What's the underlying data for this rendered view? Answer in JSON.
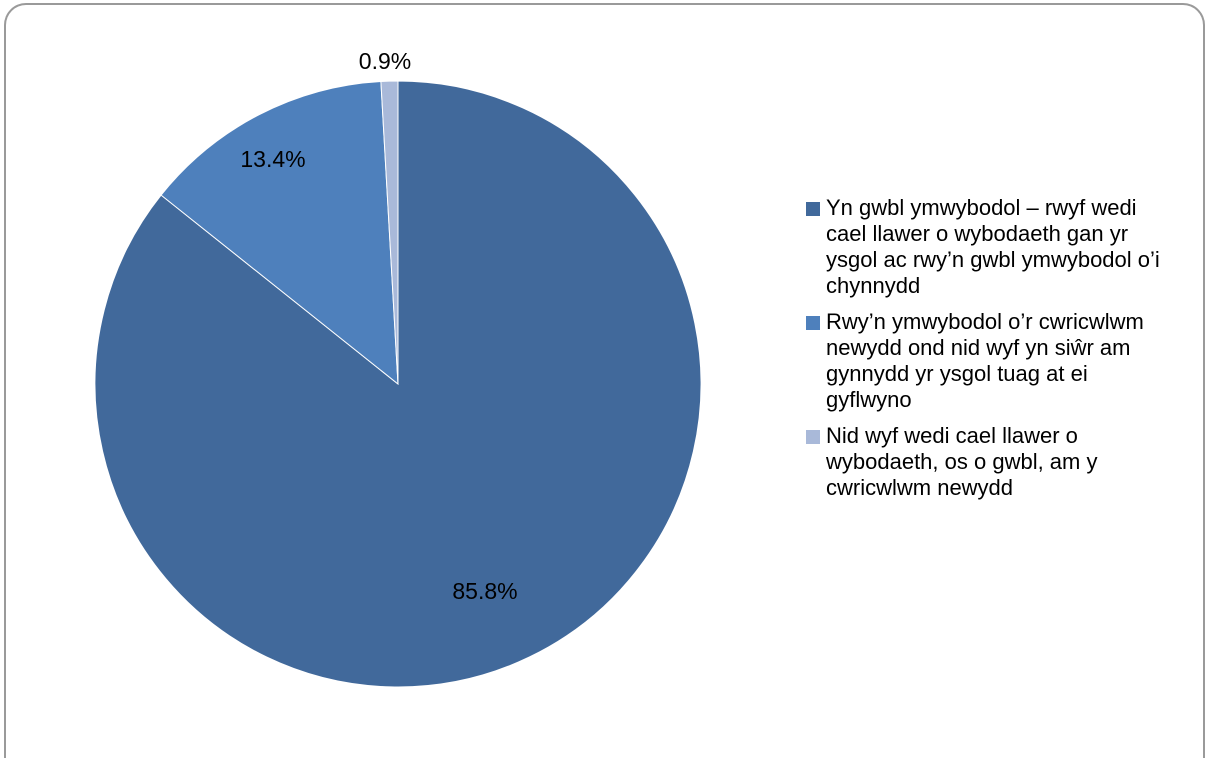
{
  "chart_data": {
    "type": "pie",
    "title": "",
    "slices": [
      {
        "label": "Yn gwbl ymwybodol – rwyf wedi cael llawer o wybodaeth gan yr ysgol ac rwy’n gwbl ymwybodol o’i chynnydd",
        "value": 85.8,
        "display": "85.8%",
        "color": "#41699b"
      },
      {
        "label": "Rwy’n ymwybodol o’r cwricwlwm newydd ond nid wyf yn siŵr am gynnydd yr ysgol tuag at ei gyflwyno",
        "value": 13.4,
        "display": "13.4%",
        "color": "#4e80bc"
      },
      {
        "label": "Nid wyf wedi cael llawer o wybodaeth, os o gwbl, am y cwricwlwm newydd",
        "value": 0.9,
        "display": "0.9%",
        "color": "#a9b9d9"
      }
    ],
    "start": "12 o'clock",
    "direction": "clockwise",
    "legend_position": "right"
  }
}
